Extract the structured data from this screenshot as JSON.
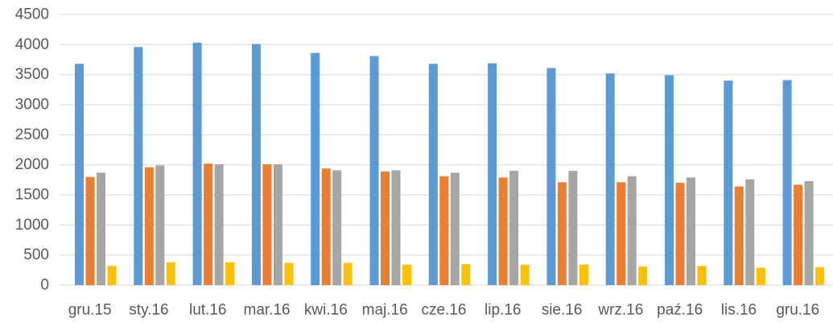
{
  "chart_data": {
    "type": "bar",
    "title": "",
    "xlabel": "",
    "ylabel": "",
    "ylim": [
      0,
      4500
    ],
    "yticks": [
      0,
      500,
      1000,
      1500,
      2000,
      2500,
      3000,
      3500,
      4000,
      4500
    ],
    "grid": true,
    "legend": "none",
    "categories": [
      "gru.15",
      "sty.16",
      "lut.16",
      "mar.16",
      "kwi.16",
      "maj.16",
      "cze.16",
      "lip.16",
      "sie.16",
      "wrz.16",
      "paź.16",
      "lis.16",
      "gru.16"
    ],
    "series": [
      {
        "color": "#5B9BD5",
        "values": [
          3680,
          3960,
          4030,
          4010,
          3860,
          3810,
          3680,
          3690,
          3610,
          3520,
          3490,
          3400,
          3410
        ]
      },
      {
        "color": "#ED7D31",
        "values": [
          1800,
          1960,
          2020,
          2010,
          1940,
          1890,
          1810,
          1790,
          1710,
          1710,
          1700,
          1640,
          1670
        ]
      },
      {
        "color": "#A5A5A5",
        "values": [
          1870,
          1990,
          2010,
          2010,
          1910,
          1910,
          1870,
          1900,
          1900,
          1810,
          1790,
          1760,
          1730
        ]
      },
      {
        "color": "#FFC000",
        "values": [
          320,
          380,
          380,
          370,
          370,
          340,
          350,
          340,
          340,
          310,
          320,
          290,
          300
        ]
      }
    ]
  }
}
